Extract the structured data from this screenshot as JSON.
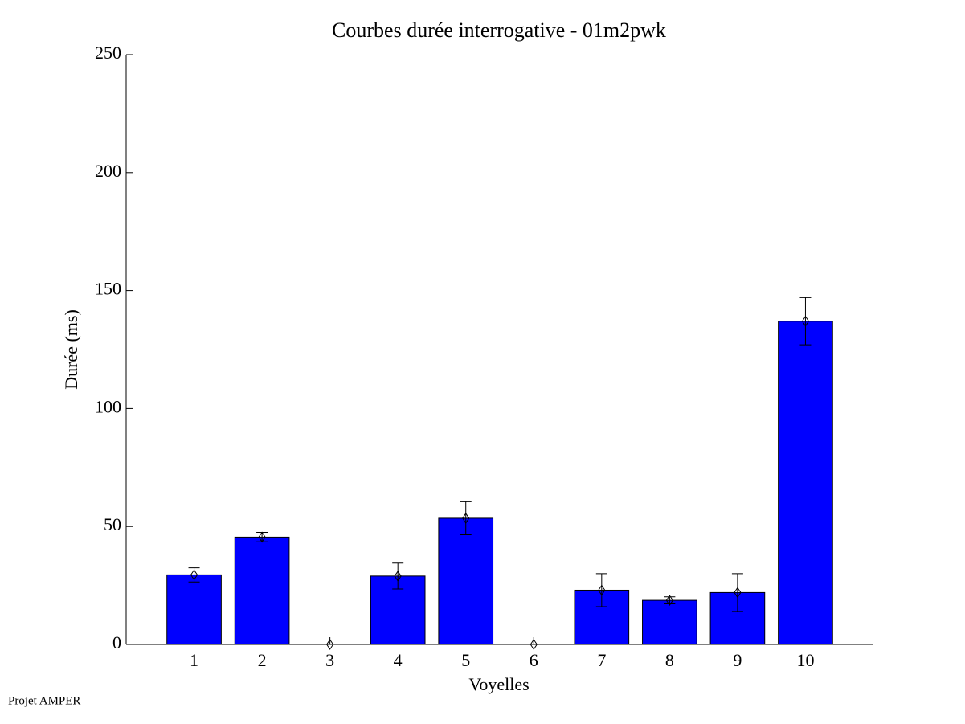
{
  "chart_data": {
    "type": "bar",
    "title": "Courbes durée interrogative - 01m2pwk",
    "x_label": "Voyelles",
    "y_label": "Durée (ms)",
    "footer": "Projet AMPER",
    "x": [
      1,
      2,
      3,
      4,
      5,
      6,
      7,
      8,
      9,
      10
    ],
    "values": [
      29.5,
      45.5,
      0,
      29,
      53.5,
      0,
      23,
      18.7,
      22,
      137
    ],
    "errors": [
      3,
      2,
      0,
      5.5,
      7,
      0,
      7,
      1.5,
      8,
      10
    ],
    "color": "#0000ff",
    "xlim": [
      0,
      11
    ],
    "xticks": [
      1,
      2,
      3,
      4,
      5,
      6,
      7,
      8,
      9,
      10
    ],
    "ylim": [
      0,
      250
    ],
    "yticks": [
      0,
      50,
      100,
      150,
      200,
      250
    ]
  }
}
